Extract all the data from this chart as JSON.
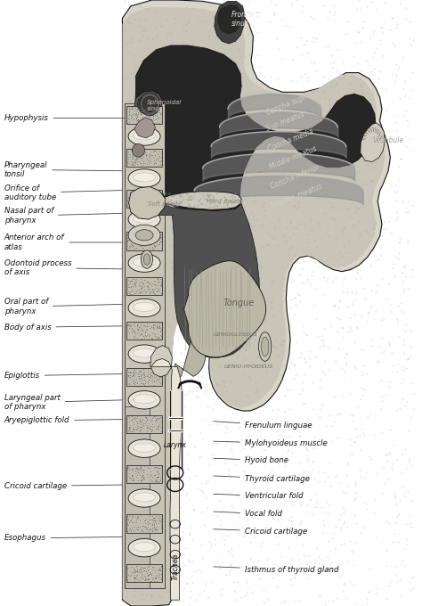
{
  "figsize": [
    4.74,
    6.8
  ],
  "dpi": 100,
  "bg_color": "#ffffff",
  "left_labels": [
    {
      "text": "Hypophysis",
      "xt": 0.01,
      "yt": 0.805,
      "xa": 0.3,
      "ya": 0.805
    },
    {
      "text": "Pharyngeal\ntonsil",
      "xt": 0.01,
      "yt": 0.72,
      "xa": 0.295,
      "ya": 0.718
    },
    {
      "text": "Orifice of\nauditory tube",
      "xt": 0.01,
      "yt": 0.682,
      "xa": 0.295,
      "ya": 0.686
    },
    {
      "text": "Nasal part of\npharynx",
      "xt": 0.01,
      "yt": 0.644,
      "xa": 0.295,
      "ya": 0.648
    },
    {
      "text": "Anterior arch of\natlas",
      "xt": 0.01,
      "yt": 0.6,
      "xa": 0.295,
      "ya": 0.6
    },
    {
      "text": "Odontoid process\nof axis",
      "xt": 0.01,
      "yt": 0.558,
      "xa": 0.295,
      "ya": 0.556
    },
    {
      "text": "Oral part of\npharynx",
      "xt": 0.01,
      "yt": 0.494,
      "xa": 0.295,
      "ya": 0.498
    },
    {
      "text": "Body of axis",
      "xt": 0.01,
      "yt": 0.46,
      "xa": 0.295,
      "ya": 0.462
    },
    {
      "text": "Epiglottis",
      "xt": 0.01,
      "yt": 0.38,
      "xa": 0.295,
      "ya": 0.383
    },
    {
      "text": "Laryngeal part\nof pharynx",
      "xt": 0.01,
      "yt": 0.336,
      "xa": 0.295,
      "ya": 0.34
    },
    {
      "text": "Aryepiglottic fold",
      "xt": 0.01,
      "yt": 0.306,
      "xa": 0.295,
      "ya": 0.308
    },
    {
      "text": "Cricoid cartilage",
      "xt": 0.01,
      "yt": 0.198,
      "xa": 0.295,
      "ya": 0.2
    },
    {
      "text": "Esophagus",
      "xt": 0.01,
      "yt": 0.112,
      "xa": 0.295,
      "ya": 0.114
    }
  ],
  "right_labels": [
    {
      "text": "Frenulum linguae",
      "xt": 0.58,
      "yt": 0.298,
      "xa": 0.5,
      "ya": 0.305
    },
    {
      "text": "Mylohyoideus muscle",
      "xt": 0.58,
      "yt": 0.268,
      "xa": 0.5,
      "ya": 0.272
    },
    {
      "text": "Hyoid bone",
      "xt": 0.58,
      "yt": 0.24,
      "xa": 0.5,
      "ya": 0.244
    },
    {
      "text": "Thyroid cartilage",
      "xt": 0.58,
      "yt": 0.21,
      "xa": 0.5,
      "ya": 0.215
    },
    {
      "text": "Ventricular fold",
      "xt": 0.58,
      "yt": 0.181,
      "xa": 0.5,
      "ya": 0.185
    },
    {
      "text": "Vocal fold",
      "xt": 0.58,
      "yt": 0.152,
      "xa": 0.5,
      "ya": 0.156
    },
    {
      "text": "Cricoid cartilage",
      "xt": 0.58,
      "yt": 0.123,
      "xa": 0.5,
      "ya": 0.127
    },
    {
      "text": "Isthmus of thyroid gland",
      "xt": 0.58,
      "yt": 0.06,
      "xa": 0.5,
      "ya": 0.065
    }
  ],
  "label_fontsize": 6.2,
  "line_color": "#333333",
  "text_color": "#111111"
}
